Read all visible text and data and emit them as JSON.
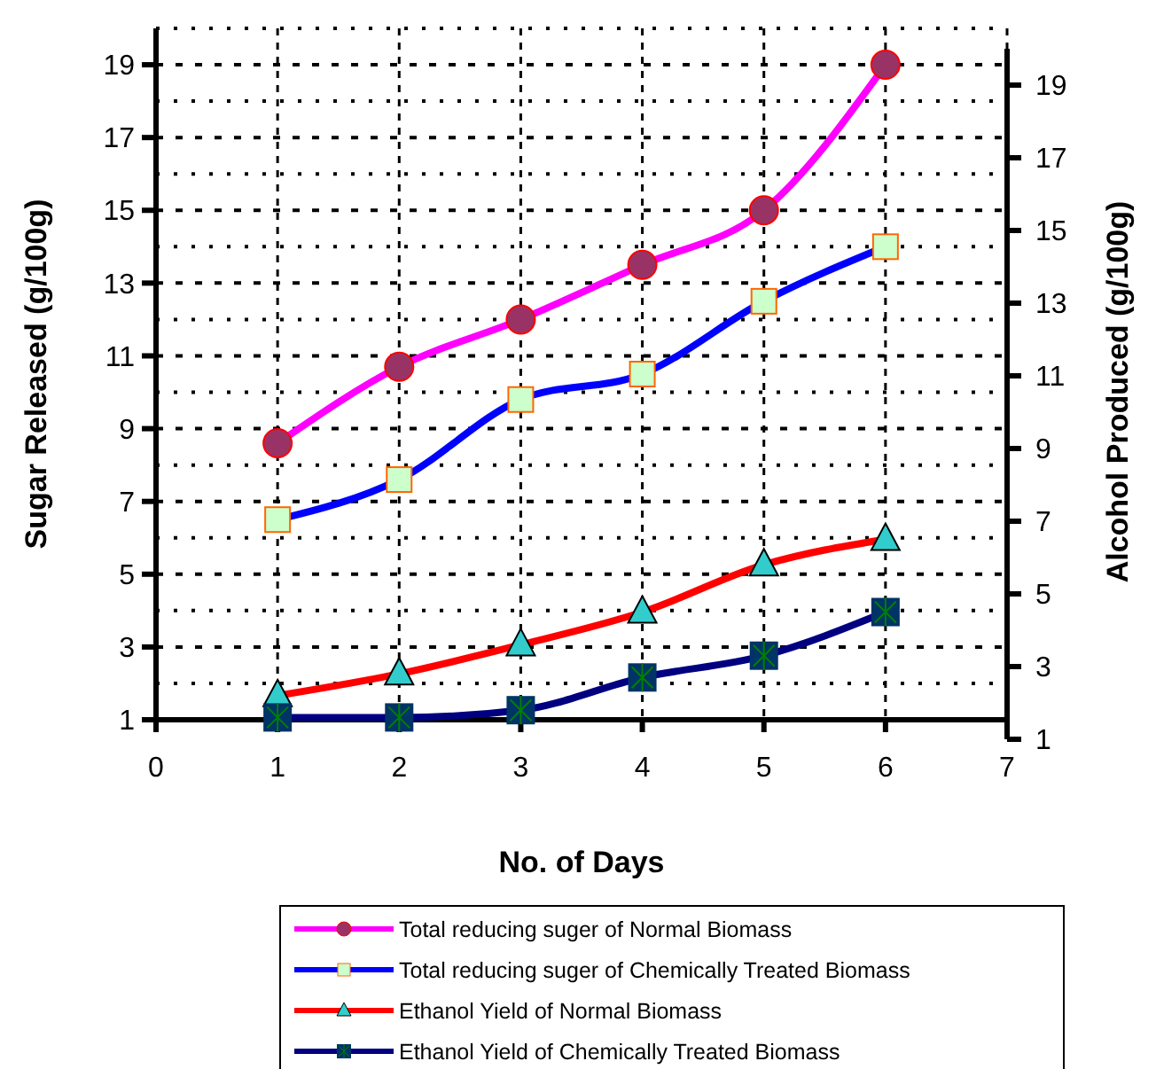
{
  "chart_data": {
    "type": "line",
    "xlabel": "No. of Days",
    "ylabel": "Sugar Released (g/100g)",
    "y2label": "Alcohol Produced (g/100g)",
    "x": [
      1,
      2,
      3,
      4,
      5,
      6
    ],
    "xlim": [
      0,
      7
    ],
    "xticks": [
      0,
      1,
      2,
      3,
      4,
      5,
      6,
      7
    ],
    "ylim": [
      1,
      20
    ],
    "yticks": [
      1,
      3,
      5,
      7,
      9,
      11,
      13,
      15,
      17,
      19
    ],
    "y2lim": [
      1,
      20
    ],
    "y2ticks": [
      1,
      3,
      5,
      7,
      9,
      11,
      13,
      15,
      17,
      19
    ],
    "grid": true,
    "legend": "bottom",
    "line_style": "solid",
    "series": [
      {
        "name": "Total reducing suger of Normal Biomass",
        "color": "#ff00ff",
        "marker": "circle",
        "values": [
          8.6,
          10.7,
          12.0,
          13.5,
          15.0,
          19.0
        ]
      },
      {
        "name": "Total reducing suger of Chemically Treated Biomass",
        "color": "#0000ff",
        "marker": "square",
        "values": [
          6.5,
          7.6,
          9.8,
          10.5,
          12.5,
          14.0
        ]
      },
      {
        "name": "Ethanol Yield of Normal Biomass",
        "color": "#ff0000",
        "marker": "triangle",
        "axis": "y2",
        "values": [
          2.2,
          2.8,
          3.6,
          4.5,
          5.8,
          6.5
        ]
      },
      {
        "name": "Ethanol Yield of Chemically Treated Biomass",
        "color": "#000080",
        "marker": "square",
        "axis": "y2",
        "values": [
          1.6,
          1.6,
          1.8,
          2.7,
          3.3,
          4.5
        ]
      }
    ]
  }
}
